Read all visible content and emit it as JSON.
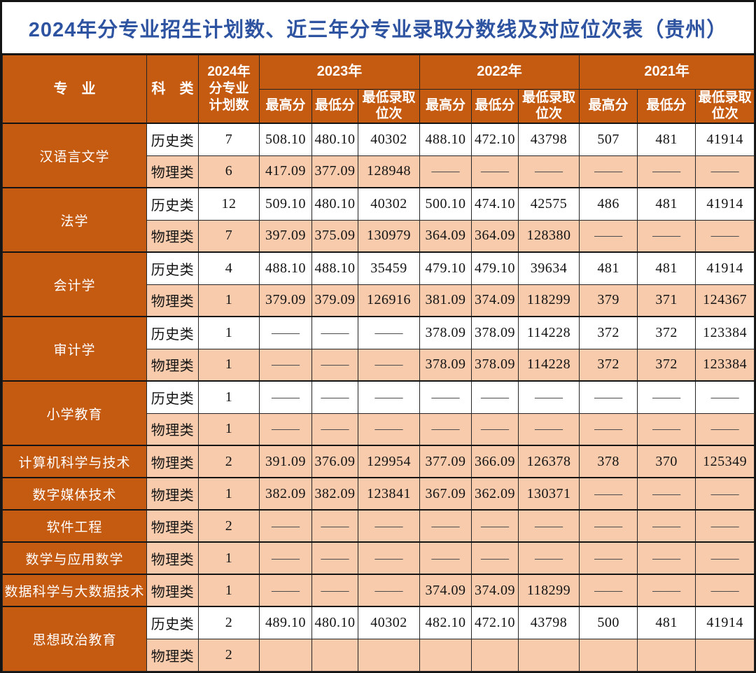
{
  "title": "2024年分专业招生计划数、近三年分专业录取分数线及对应位次表（贵州）",
  "colors": {
    "header_bg": "#C55A11",
    "alt_row_bg": "#F8CBAD",
    "title_blue": "#2E54A1",
    "border": "#262626"
  },
  "table": {
    "headers": {
      "major": "专　业",
      "category": "科　类",
      "plan2024": "2024年\n分专业\n计划数",
      "years": [
        "2023年",
        "2022年",
        "2021年"
      ],
      "sub": [
        "最高分",
        "最低分",
        "最低录取\n位次"
      ]
    },
    "groups": [
      {
        "major": "汉语言文学",
        "rows": [
          {
            "category": "历史类",
            "plan": "7",
            "values": [
              "508.10",
              "480.10",
              "40302",
              "488.10",
              "472.10",
              "43798",
              "507",
              "481",
              "41914"
            ]
          },
          {
            "category": "物理类",
            "plan": "6",
            "values": [
              "417.09",
              "377.09",
              "128948",
              "——",
              "——",
              "——",
              "——",
              "——",
              "——"
            ]
          }
        ]
      },
      {
        "major": "法学",
        "rows": [
          {
            "category": "历史类",
            "plan": "12",
            "values": [
              "509.10",
              "480.10",
              "40302",
              "500.10",
              "474.10",
              "42575",
              "486",
              "481",
              "41914"
            ]
          },
          {
            "category": "物理类",
            "plan": "7",
            "values": [
              "397.09",
              "375.09",
              "130979",
              "364.09",
              "364.09",
              "128380",
              "——",
              "——",
              "——"
            ]
          }
        ]
      },
      {
        "major": "会计学",
        "rows": [
          {
            "category": "历史类",
            "plan": "4",
            "values": [
              "488.10",
              "488.10",
              "35459",
              "479.10",
              "479.10",
              "39634",
              "481",
              "481",
              "41914"
            ]
          },
          {
            "category": "物理类",
            "plan": "1",
            "values": [
              "379.09",
              "379.09",
              "126916",
              "381.09",
              "374.09",
              "118299",
              "379",
              "371",
              "124367"
            ]
          }
        ]
      },
      {
        "major": "审计学",
        "rows": [
          {
            "category": "历史类",
            "plan": "1",
            "values": [
              "——",
              "——",
              "——",
              "378.09",
              "378.09",
              "114228",
              "372",
              "372",
              "123384"
            ]
          },
          {
            "category": "物理类",
            "plan": "1",
            "values": [
              "——",
              "——",
              "——",
              "378.09",
              "378.09",
              "114228",
              "372",
              "372",
              "123384"
            ]
          }
        ]
      },
      {
        "major": "小学教育",
        "rows": [
          {
            "category": "历史类",
            "plan": "1",
            "values": [
              "——",
              "——",
              "——",
              "——",
              "——",
              "——",
              "——",
              "——",
              "——"
            ]
          },
          {
            "category": "物理类",
            "plan": "1",
            "values": [
              "——",
              "——",
              "——",
              "——",
              "——",
              "——",
              "——",
              "——",
              "——"
            ]
          }
        ]
      },
      {
        "major": "计算机科学与技术",
        "rows": [
          {
            "category": "物理类",
            "plan": "2",
            "values": [
              "391.09",
              "376.09",
              "129954",
              "377.09",
              "366.09",
              "126378",
              "378",
              "370",
              "125349"
            ]
          }
        ]
      },
      {
        "major": "数字媒体技术",
        "rows": [
          {
            "category": "物理类",
            "plan": "1",
            "values": [
              "382.09",
              "382.09",
              "123841",
              "367.09",
              "362.09",
              "130371",
              "——",
              "——",
              "——"
            ]
          }
        ]
      },
      {
        "major": "软件工程",
        "rows": [
          {
            "category": "物理类",
            "plan": "2",
            "values": [
              "——",
              "——",
              "——",
              "——",
              "——",
              "——",
              "——",
              "——",
              "——"
            ]
          }
        ]
      },
      {
        "major": "数学与应用数学",
        "rows": [
          {
            "category": "物理类",
            "plan": "1",
            "values": [
              "——",
              "——",
              "——",
              "——",
              "——",
              "——",
              "——",
              "——",
              "——"
            ]
          }
        ]
      },
      {
        "major": "数据科学与大数据技术",
        "rows": [
          {
            "category": "物理类",
            "plan": "1",
            "values": [
              "——",
              "——",
              "——",
              "374.09",
              "374.09",
              "118299",
              "——",
              "——",
              "——"
            ]
          }
        ]
      },
      {
        "major": "思想政治教育",
        "rows": [
          {
            "category": "历史类",
            "plan": "2",
            "values": [
              "489.10",
              "480.10",
              "40302",
              "482.10",
              "472.10",
              "43798",
              "500",
              "481",
              "41914"
            ]
          },
          {
            "category": "物理类",
            "plan": "2",
            "values": [
              "",
              "",
              "",
              "",
              "",
              "",
              "",
              "",
              ""
            ]
          }
        ]
      }
    ]
  }
}
